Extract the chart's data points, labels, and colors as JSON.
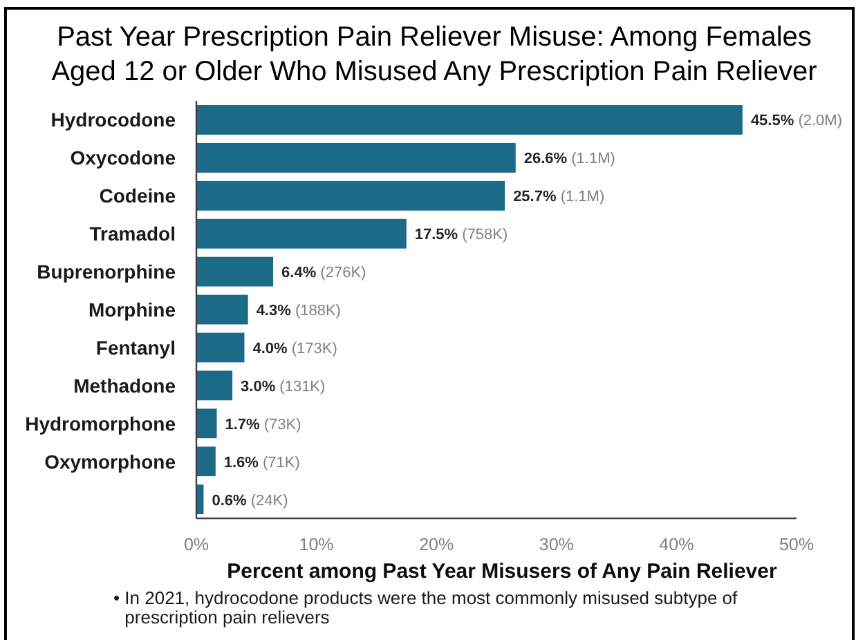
{
  "chart_data": {
    "type": "bar",
    "orientation": "horizontal",
    "title": "Past Year Prescription Pain Reliever Misuse: Among Females Aged 12 or Older Who Misused Any Prescription Pain Reliever",
    "xlabel": "Percent among Past Year Misusers of Any Pain Reliever",
    "categories": [
      "Hydrocodone",
      "Oxycodone",
      "Codeine",
      "Tramadol",
      "Buprenorphine",
      "Morphine",
      "Fentanyl",
      "Methadone",
      "Hydromorphone",
      "Oxymorphone",
      null
    ],
    "values": [
      45.5,
      26.6,
      25.7,
      17.5,
      6.4,
      4.3,
      4.0,
      3.0,
      1.7,
      1.6,
      0.6
    ],
    "color": "#1b6a88",
    "value_labels": [
      "45.5% (2.0M)",
      "26.6% (1.1M)",
      "25.7% (1.1M)",
      "17.5% (758K)",
      "6.4% (276K)",
      "4.3% (188K)",
      "4.0% (173K)",
      "3.0% (131K)",
      "1.7% (73K)",
      "1.6% (71K)",
      "0.6% (24K)"
    ],
    "xlim": [
      0,
      50
    ],
    "xticks": [
      {
        "value": 0,
        "label": "0%"
      },
      {
        "value": 10,
        "label": "10%"
      },
      {
        "value": 20,
        "label": "20%"
      },
      {
        "value": 30,
        "label": "30%"
      },
      {
        "value": 40,
        "label": "40%"
      },
      {
        "value": 50,
        "label": "50%"
      }
    ],
    "annotations": [
      "• In 2021, hydrocodone products were the most commonly misused subtype of prescription pain relievers"
    ]
  }
}
